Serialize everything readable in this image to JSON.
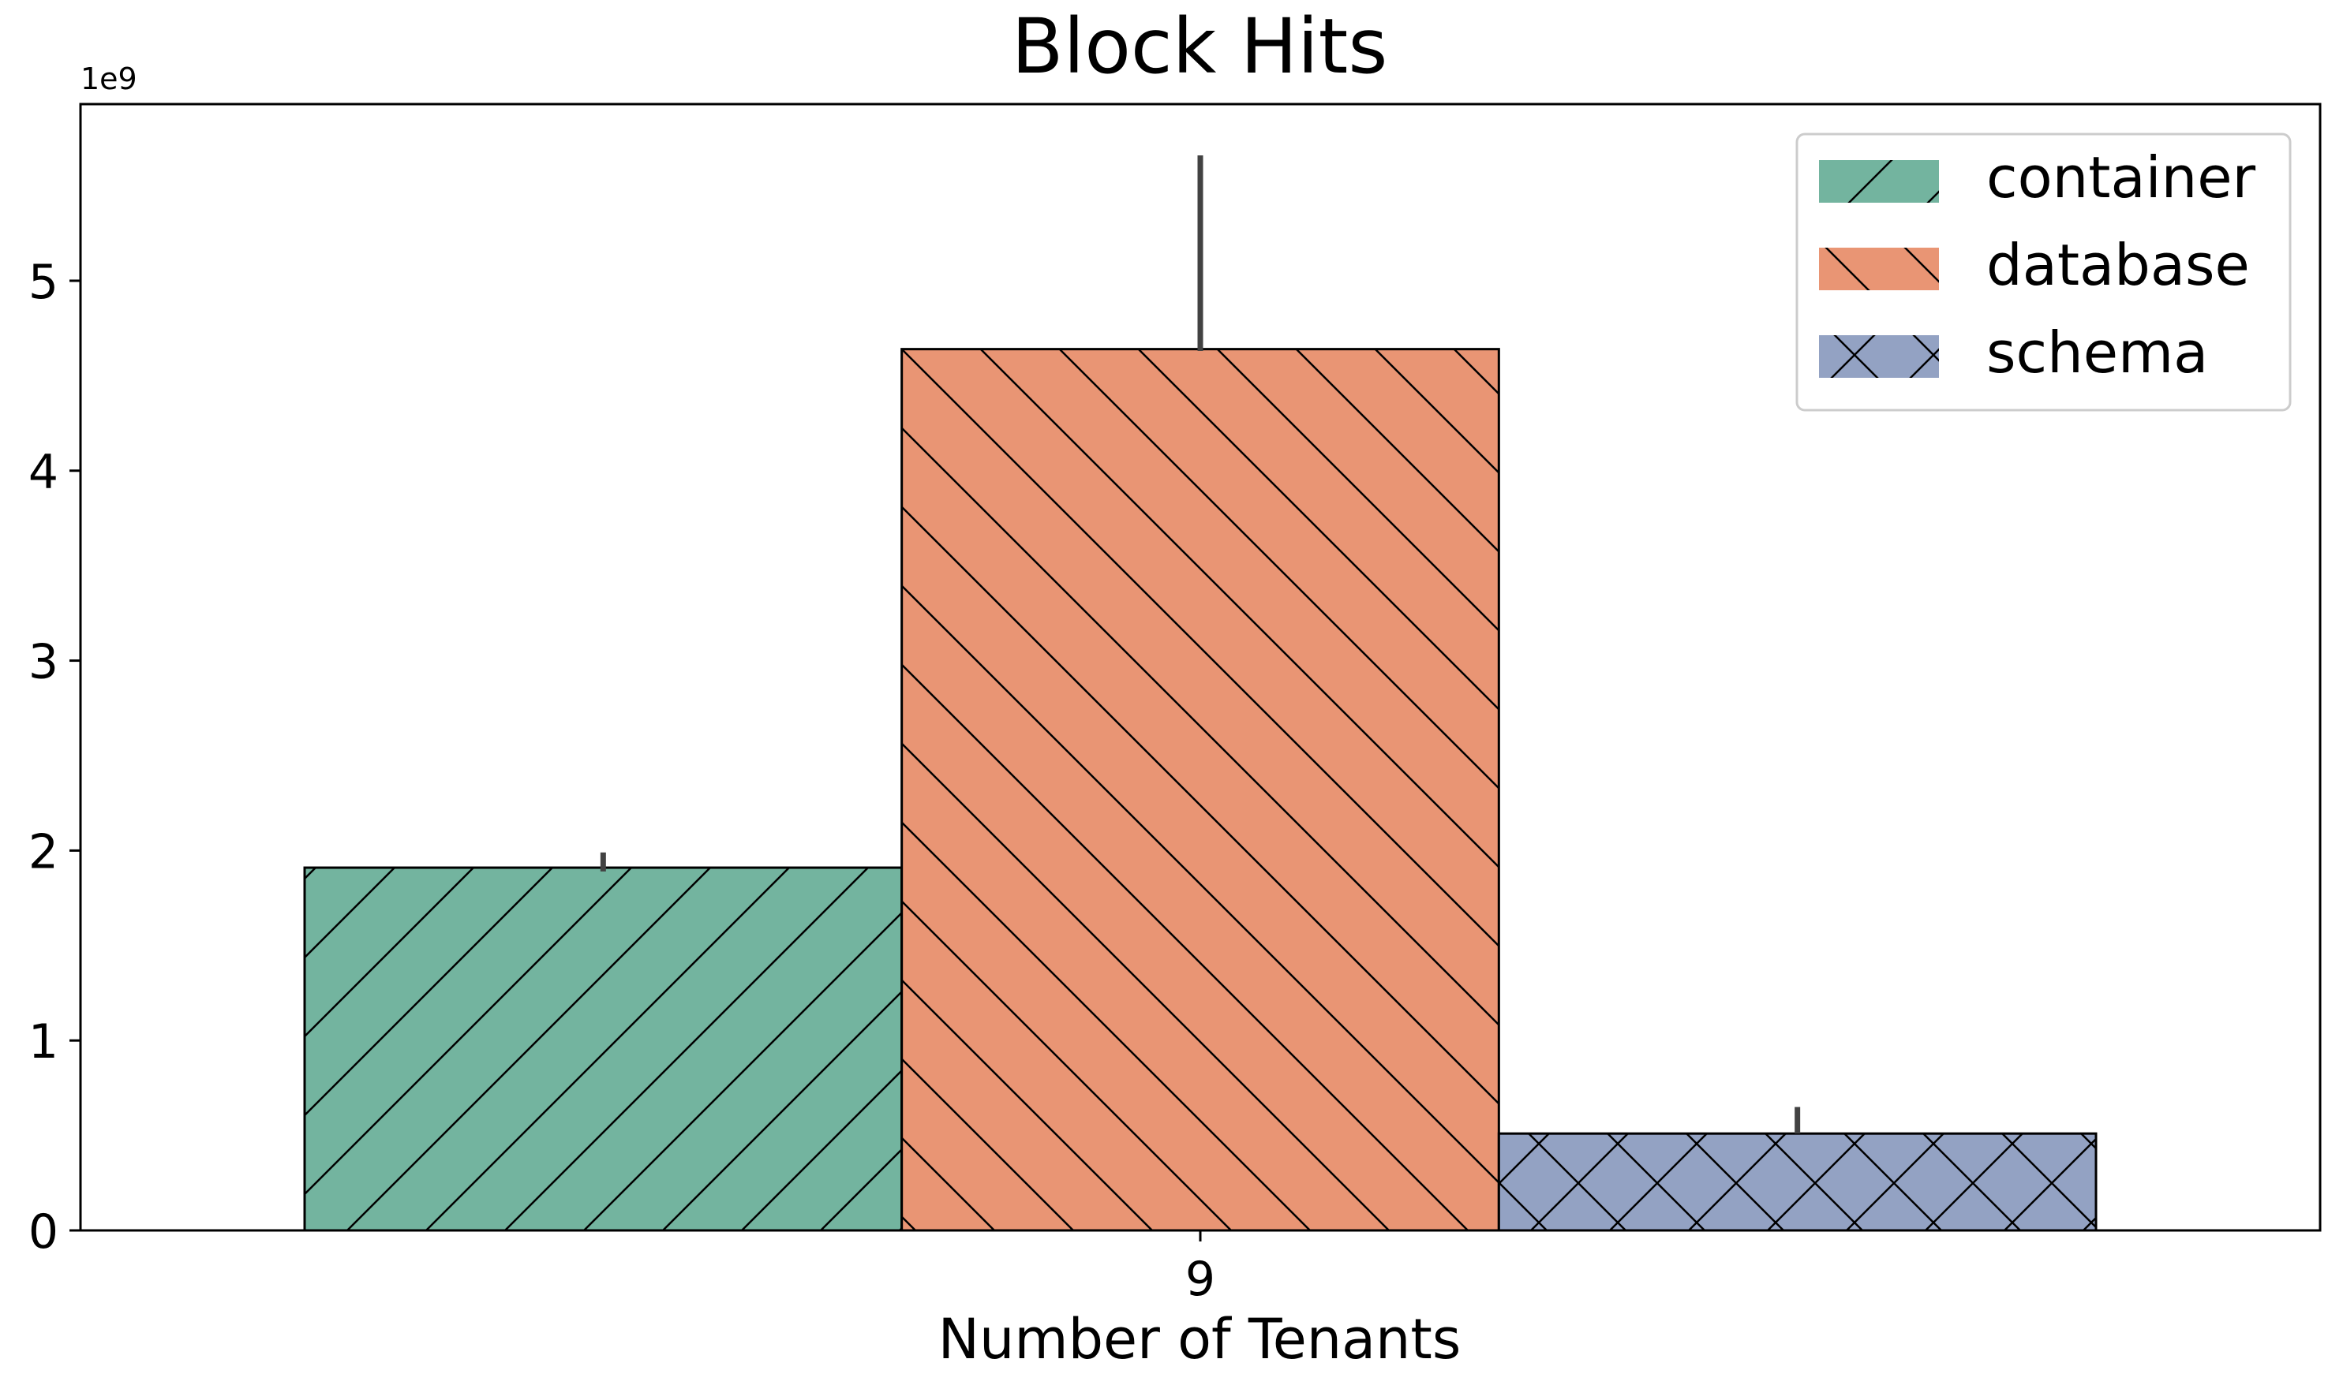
{
  "chart_data": {
    "type": "bar",
    "title": "Block Hits",
    "xlabel": "Number of Tenants",
    "ylabel": "",
    "scale_label": "1e9",
    "categories": [
      "9"
    ],
    "ylim": [
      0,
      5.93
    ],
    "yticks": [
      0,
      1,
      2,
      3,
      4,
      5
    ],
    "y_multiplier": 1000000000,
    "grid": false,
    "legend_position": "top-right",
    "series": [
      {
        "name": "container",
        "values": [
          1.91
        ],
        "error_high": [
          1.99
        ],
        "error_low": [
          1.89
        ],
        "color": "#73b49f",
        "hatch": "forward-diagonal"
      },
      {
        "name": "database",
        "values": [
          4.64
        ],
        "error_high": [
          5.66
        ],
        "error_low": [
          4.63
        ],
        "color": "#e99574",
        "hatch": "back-diagonal"
      },
      {
        "name": "schema",
        "values": [
          0.51
        ],
        "error_high": [
          0.65
        ],
        "error_low": [
          0.51
        ],
        "color": "#93a2c3",
        "hatch": "cross"
      }
    ]
  }
}
